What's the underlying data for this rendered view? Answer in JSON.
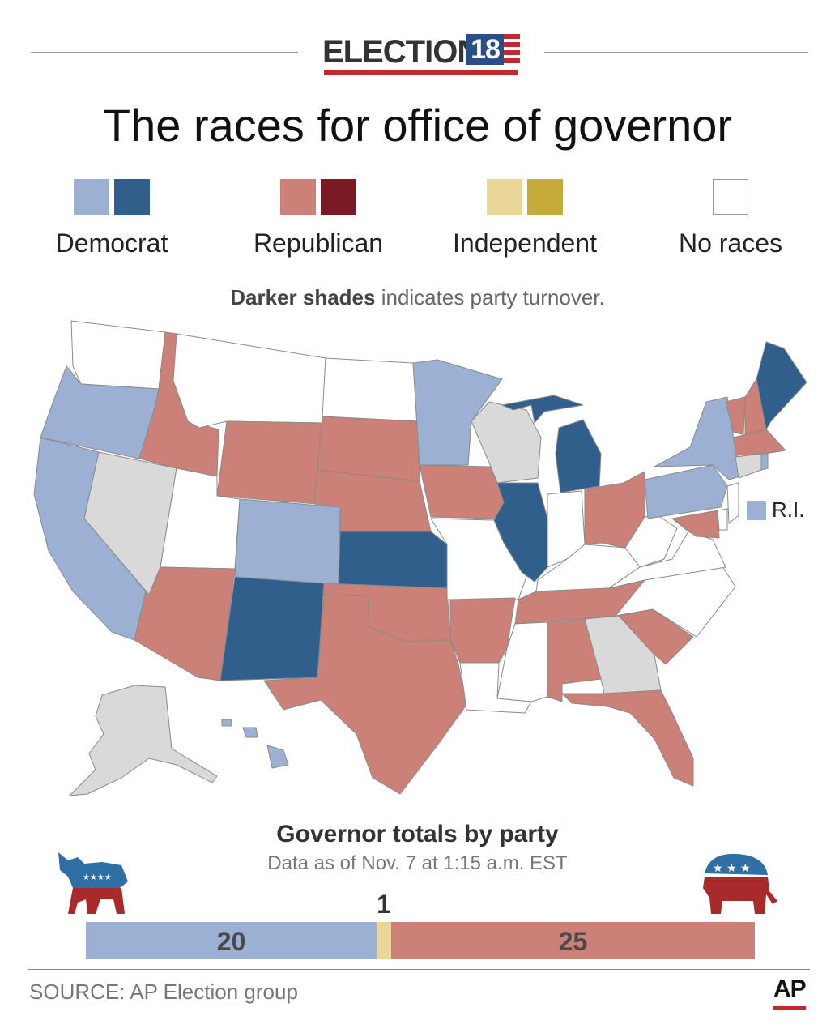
{
  "header": {
    "logo_word": "ELECTION",
    "logo_year": "18",
    "title": "The races for office of governor"
  },
  "legend": {
    "items": [
      {
        "label": "Democrat",
        "colors": [
          "#9bb0d3",
          "#2f5f8a"
        ]
      },
      {
        "label": "Republican",
        "colors": [
          "#cb8078",
          "#7a1a24"
        ]
      },
      {
        "label": "Independent",
        "colors": [
          "#ead797",
          "#c6aa3a"
        ]
      },
      {
        "label": "No races",
        "colors": [
          "#ffffff"
        ]
      }
    ],
    "note_bold": "Darker shades",
    "note_rest": " indicates party turnover."
  },
  "map": {
    "ri_label": "R.I.",
    "colors": {
      "dem": "#9bb0d3",
      "dem_flip": "#2f5f8a",
      "rep": "#cb8078",
      "rep_flip": "#7a1a24",
      "pending": "#d9d9d9",
      "none": "#ffffff"
    },
    "states": {
      "WA": "none",
      "OR": "dem",
      "CA": "dem",
      "NV": "pending",
      "ID": "rep",
      "MT": "none",
      "WY": "rep",
      "UT": "none",
      "AZ": "rep",
      "CO": "dem",
      "NM": "dem_flip",
      "ND": "none",
      "SD": "rep",
      "NE": "rep",
      "KS": "dem_flip",
      "OK": "rep",
      "TX": "rep",
      "MN": "dem",
      "IA": "rep",
      "MO": "none",
      "AR": "rep",
      "LA": "none",
      "WI": "pending",
      "IL": "dem_flip",
      "MI": "dem_flip",
      "IN": "none",
      "OH": "rep",
      "KY": "none",
      "TN": "rep",
      "MS": "none",
      "AL": "rep",
      "GA": "pending",
      "FL": "rep",
      "SC": "rep",
      "NC": "none",
      "VA": "none",
      "WV": "none",
      "PA": "dem",
      "NY": "dem",
      "VT": "rep",
      "NH": "rep",
      "ME": "dem_flip",
      "MA": "rep",
      "CT": "pending",
      "RI": "dem",
      "NJ": "none",
      "DE": "none",
      "MD": "rep",
      "AK": "pending",
      "HI": "dem"
    }
  },
  "totals": {
    "title": "Governor totals by party",
    "subtitle": "Data as of Nov. 7 at 1:15 a.m. EST",
    "democrat": 20,
    "independent": 1,
    "republican": 25,
    "dem_label": "20",
    "ind_label": "1",
    "rep_label": "25"
  },
  "footer": {
    "source": "SOURCE: AP Election group",
    "credit": "AP"
  }
}
